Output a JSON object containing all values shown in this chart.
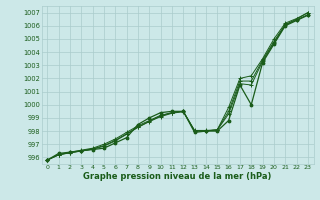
{
  "title": "Graphe pression niveau de la mer (hPa)",
  "bg_color": "#cce8e8",
  "grid_color": "#aacccc",
  "line_color": "#1a5c1a",
  "xlim": [
    -0.5,
    23.5
  ],
  "ylim": [
    995.5,
    1007.5
  ],
  "yticks": [
    996,
    997,
    998,
    999,
    1000,
    1001,
    1002,
    1003,
    1004,
    1005,
    1006,
    1007
  ],
  "xticks": [
    0,
    1,
    2,
    3,
    4,
    5,
    6,
    7,
    8,
    9,
    10,
    11,
    12,
    13,
    14,
    15,
    16,
    17,
    18,
    19,
    20,
    21,
    22,
    23
  ],
  "line_main": [
    995.8,
    996.3,
    996.4,
    996.5,
    996.6,
    996.7,
    997.1,
    997.5,
    998.5,
    999.0,
    999.4,
    999.5,
    999.5,
    997.9,
    998.0,
    998.0,
    998.8,
    1001.5,
    1000.0,
    1003.2,
    1004.6,
    1006.0,
    1006.4,
    1006.8
  ],
  "line_a": [
    995.8,
    996.2,
    996.4,
    996.55,
    996.7,
    997.0,
    997.4,
    997.9,
    998.4,
    998.8,
    999.2,
    999.4,
    999.5,
    998.0,
    998.0,
    998.1,
    999.5,
    1001.8,
    1001.8,
    1003.4,
    1004.8,
    1006.1,
    1006.5,
    1007.0
  ],
  "line_b": [
    995.8,
    996.2,
    996.35,
    996.5,
    996.65,
    996.9,
    997.3,
    997.8,
    998.3,
    998.75,
    999.15,
    999.4,
    999.5,
    998.05,
    998.05,
    998.1,
    999.8,
    1002.0,
    1002.2,
    1003.5,
    1005.0,
    1006.2,
    1006.55,
    1007.0
  ],
  "line_c": [
    995.8,
    996.2,
    996.35,
    996.48,
    996.62,
    996.85,
    997.25,
    997.75,
    998.28,
    998.72,
    999.1,
    999.35,
    999.48,
    998.02,
    998.02,
    998.08,
    999.3,
    1001.6,
    1001.5,
    1003.3,
    1004.7,
    1006.05,
    1006.45,
    1006.85
  ]
}
